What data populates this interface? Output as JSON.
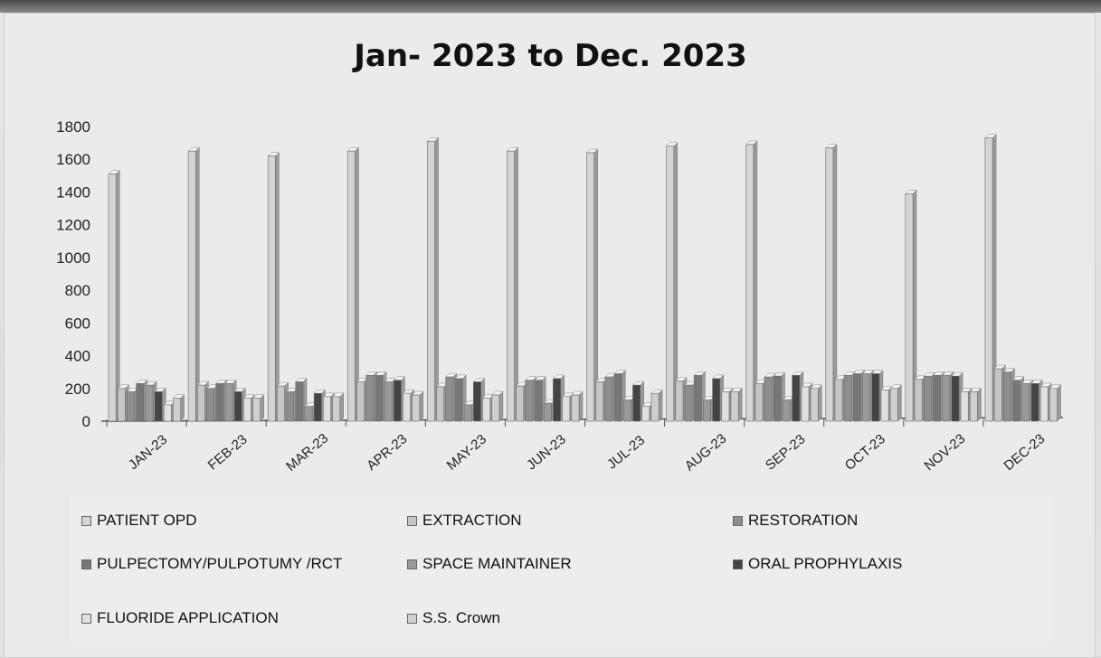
{
  "chart_data": {
    "type": "bar",
    "title": "Jan- 2023 to Dec. 2023",
    "ylim": [
      0,
      1800
    ],
    "yticks": [
      0,
      200,
      400,
      600,
      800,
      1000,
      1200,
      1400,
      1600,
      1800
    ],
    "yticks_text": [
      "0",
      "200",
      "400",
      "600",
      "800",
      "1000",
      "1200",
      "1400",
      "1600",
      "1800"
    ],
    "categories": [
      "JAN-23",
      "FEB-23",
      "MAR-23",
      "APR-23",
      "MAY-23",
      "JUN-23",
      "JUL-23",
      "AUG-23",
      "SEP-23",
      "OCT-23",
      "NOV-23",
      "DEC-23"
    ],
    "legend_position": "bottom",
    "series": [
      {
        "name": "PATIENT OPD",
        "color": "#d4d4d4",
        "values": [
          1510,
          1650,
          1620,
          1650,
          1710,
          1650,
          1640,
          1680,
          1690,
          1670,
          1390,
          1730
        ]
      },
      {
        "name": "EXTRACTION",
        "color": "#c6c6c6",
        "values": [
          200,
          220,
          215,
          240,
          210,
          215,
          240,
          245,
          230,
          255,
          255,
          320
        ]
      },
      {
        "name": "RESTORATION",
        "color": "#8e8e8e",
        "values": [
          180,
          200,
          180,
          280,
          270,
          250,
          270,
          220,
          270,
          280,
          275,
          300
        ]
      },
      {
        "name": "PULPECTOMY/PULPOTUMY /RCT",
        "color": "#777777",
        "values": [
          230,
          230,
          240,
          280,
          260,
          250,
          290,
          280,
          275,
          290,
          280,
          250
        ]
      },
      {
        "name": "SPACE MAINTAINER",
        "color": "#999999",
        "values": [
          220,
          230,
          90,
          240,
          100,
          110,
          130,
          130,
          130,
          290,
          280,
          230
        ]
      },
      {
        "name": "ORAL PROPHYLAXIS",
        "color": "#444444",
        "values": [
          180,
          180,
          170,
          250,
          240,
          260,
          220,
          260,
          280,
          290,
          275,
          230
        ]
      },
      {
        "name": "FLUORIDE APPLICATION",
        "color": "#e0e0e0",
        "values": [
          100,
          140,
          150,
          170,
          140,
          150,
          90,
          180,
          210,
          190,
          180,
          210
        ]
      },
      {
        "name": "S.S.  Crown",
        "color": "#cfcfcf",
        "values": [
          140,
          140,
          150,
          160,
          160,
          160,
          170,
          180,
          200,
          200,
          180,
          200
        ]
      }
    ]
  }
}
